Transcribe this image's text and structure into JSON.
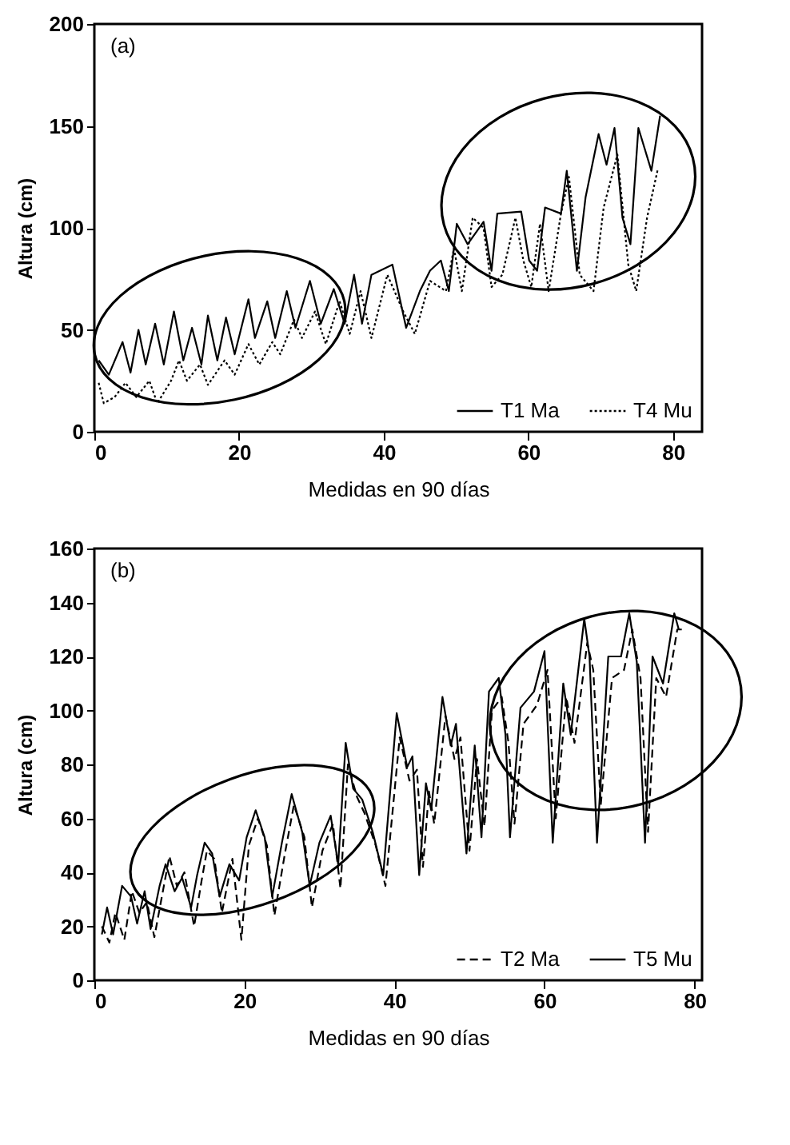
{
  "chart_data": [
    {
      "type": "line",
      "xlabel": "Medidas en 90 días",
      "ylabel": "Altura (cm)",
      "annotations": [
        "(a)"
      ],
      "xlim": [
        0,
        84
      ],
      "xticks": [
        0,
        20,
        40,
        60,
        80
      ],
      "ylim": [
        0,
        200
      ],
      "yticks": [
        0,
        50,
        100,
        150,
        200
      ],
      "grid": false,
      "legend": "bottom right",
      "series": [
        {
          "name": "T1 Ma",
          "color": "#000000",
          "line_style": "solid",
          "x": [
            0.6,
            2,
            3.9,
            5,
            6.1,
            7.1,
            8.4,
            9.6,
            11,
            12.3,
            13.5,
            14.8,
            15.7,
            17,
            18.2,
            19.4,
            21.3,
            22.2,
            23.9,
            25,
            26.6,
            27.8,
            29.8,
            31.3,
            33.1,
            34.6,
            35.9,
            37,
            38.3,
            41.2,
            43.1,
            45,
            46.4,
            47.9,
            49,
            50.1,
            51.6,
            53.8,
            54.9,
            55.7,
            59,
            60.1,
            61.2,
            62.3,
            64.5,
            65.3,
            66.7,
            67.9,
            69.7,
            70.8,
            71.9,
            73,
            74.1,
            75.2,
            77,
            78.2
          ],
          "values": [
            35,
            28,
            44,
            29,
            50,
            33,
            53,
            33,
            59,
            35,
            51,
            33,
            57,
            35,
            56,
            38,
            65,
            46,
            64,
            46,
            69,
            51,
            74,
            53,
            70,
            53,
            77,
            53,
            77,
            82,
            51,
            69,
            79,
            84,
            69,
            102,
            92,
            103,
            79,
            107,
            108,
            84,
            79,
            110,
            107,
            128,
            79,
            115,
            146,
            131,
            149,
            105,
            92,
            149,
            128,
            155
          ]
        },
        {
          "name": "T4 Mu",
          "color": "#000000",
          "line_style": "dotted",
          "x": [
            0.6,
            1.3,
            2.8,
            4.3,
            5.8,
            7.6,
            8.7,
            10.6,
            11.7,
            12.8,
            14.6,
            15.7,
            18,
            19.4,
            21.3,
            22.8,
            24.6,
            25.7,
            27.6,
            28.7,
            30.5,
            32,
            33.9,
            35.3,
            36.8,
            38.3,
            40.5,
            42.7,
            44.3,
            46.4,
            48.6,
            49.7,
            50.8,
            52.3,
            53.8,
            54.9,
            56.4,
            58.2,
            59.3,
            60.4,
            61.6,
            62.8,
            64.5,
            65.6,
            67.1,
            69,
            70.4,
            72.3,
            73.8,
            74.9,
            76.4,
            77.9
          ],
          "values": [
            24,
            14,
            17,
            24,
            17,
            25,
            14,
            25,
            35,
            25,
            33,
            23,
            35,
            28,
            43,
            33,
            44,
            38,
            55,
            46,
            59,
            43,
            64,
            48,
            69,
            46,
            77,
            59,
            48,
            74,
            69,
            90,
            69,
            105,
            100,
            71,
            77,
            105,
            84,
            71,
            102,
            69,
            107,
            125,
            77,
            69,
            110,
            136,
            82,
            69,
            105,
            129
          ]
        }
      ]
    },
    {
      "type": "line",
      "xlabel": "Medidas en 90 días",
      "ylabel": "Altura (cm)",
      "annotations": [
        "(b)"
      ],
      "xlim": [
        0,
        81
      ],
      "xticks": [
        0,
        20,
        40,
        60,
        80
      ],
      "ylim": [
        0,
        160
      ],
      "yticks": [
        0,
        20,
        40,
        60,
        80,
        100,
        120,
        140,
        160
      ],
      "grid": false,
      "legend": "bottom right",
      "series": [
        {
          "name": "T2 Ma",
          "color": "#000000",
          "line_style": "dashed",
          "x": [
            1,
            2,
            2.8,
            4,
            5,
            6,
            7,
            8,
            9,
            10,
            11,
            12,
            13.3,
            14.3,
            15,
            16,
            17,
            18.4,
            19.6,
            20.6,
            21.8,
            23,
            24,
            25.4,
            26.6,
            28,
            29,
            30.4,
            31.8,
            32.8,
            33.8,
            35,
            36,
            37.5,
            38.8,
            40.7,
            42,
            43,
            43.8,
            44.6,
            45.3,
            46.8,
            48,
            48.8,
            50,
            51,
            52,
            53,
            54.3,
            55.2,
            56,
            57.2,
            59,
            60.4,
            61.5,
            62.9,
            64,
            65.7,
            66.5,
            67.5,
            69,
            70.6,
            71.7,
            72.8,
            73.8,
            74.9,
            76.2,
            77.7,
            78.3
          ],
          "values": [
            20,
            14,
            25,
            15,
            33,
            25,
            29,
            16,
            31,
            46,
            35,
            40,
            20,
            37,
            48,
            45,
            25,
            45,
            15,
            50,
            60,
            50,
            24,
            47,
            65,
            53,
            27,
            48,
            58,
            34,
            80,
            68,
            62,
            50,
            35,
            90,
            74,
            78,
            42,
            70,
            58,
            98,
            82,
            90,
            48,
            82,
            57,
            100,
            105,
            88,
            58,
            95,
            102,
            115,
            60,
            105,
            88,
            125,
            115,
            65,
            112,
            115,
            130,
            112,
            55,
            112,
            105,
            130,
            130
          ]
        },
        {
          "name": "T5 Mu",
          "color": "#000000",
          "line_style": "solid",
          "x": [
            1,
            1.7,
            2.5,
            3.7,
            4.9,
            5.7,
            6.7,
            7.5,
            8.7,
            9.5,
            10.7,
            11.7,
            12.9,
            13.7,
            14.7,
            15.7,
            16.7,
            18,
            19.3,
            20.3,
            21.5,
            22.7,
            23.7,
            25,
            26.3,
            27.7,
            28.7,
            30,
            31.5,
            32.5,
            33.5,
            34.5,
            35.7,
            37.1,
            38.5,
            40.3,
            41.7,
            42.4,
            43.3,
            44.2,
            44.9,
            46.4,
            47.5,
            48.2,
            49.6,
            50.7,
            51.6,
            52.6,
            53.9,
            54.8,
            55.4,
            56.8,
            58.6,
            60,
            61.1,
            62.5,
            63.5,
            65.3,
            66,
            67,
            68.5,
            70.2,
            71.3,
            72.3,
            73.4,
            74.4,
            75.8,
            77.3,
            77.9
          ],
          "values": [
            17,
            27,
            17,
            35,
            31,
            21,
            33,
            19,
            35,
            43,
            33,
            38,
            27,
            39,
            51,
            47,
            31,
            43,
            37,
            53,
            63,
            53,
            31,
            51,
            69,
            55,
            35,
            51,
            61,
            43,
            88,
            71,
            67,
            55,
            39,
            99,
            79,
            83,
            39,
            73,
            63,
            105,
            87,
            95,
            47,
            87,
            53,
            107,
            112,
            91,
            53,
            101,
            107,
            122,
            51,
            110,
            91,
            134,
            120,
            51,
            120,
            120,
            136,
            118,
            51,
            120,
            110,
            136,
            130
          ]
        }
      ]
    }
  ]
}
